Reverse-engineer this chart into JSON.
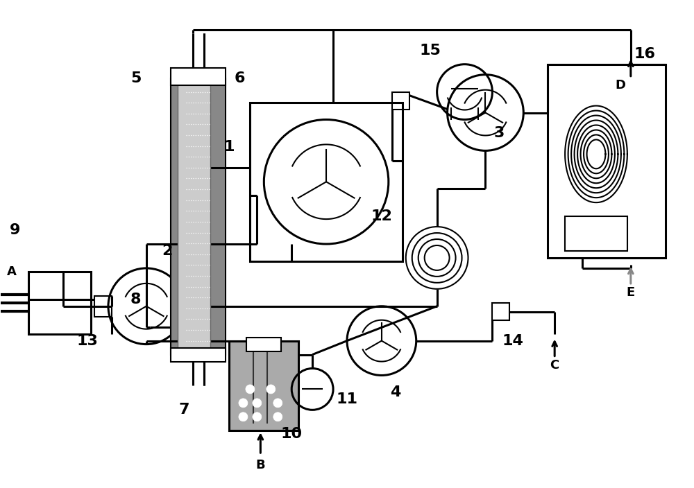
{
  "bg": "#ffffff",
  "lc": "#000000",
  "gray1": "#999999",
  "gray2": "#bbbbbb",
  "gray3": "#cccccc",
  "gray_arrow": "#aaaaaa",
  "lw": 2.2,
  "lw_t": 1.5,
  "lw_thick": 3.0,
  "fs": 16,
  "fs_sm": 13,
  "figsize": [
    10.0,
    7.04
  ],
  "dpi": 100,
  "xlim": [
    0,
    100
  ],
  "ylim": [
    0,
    70
  ]
}
